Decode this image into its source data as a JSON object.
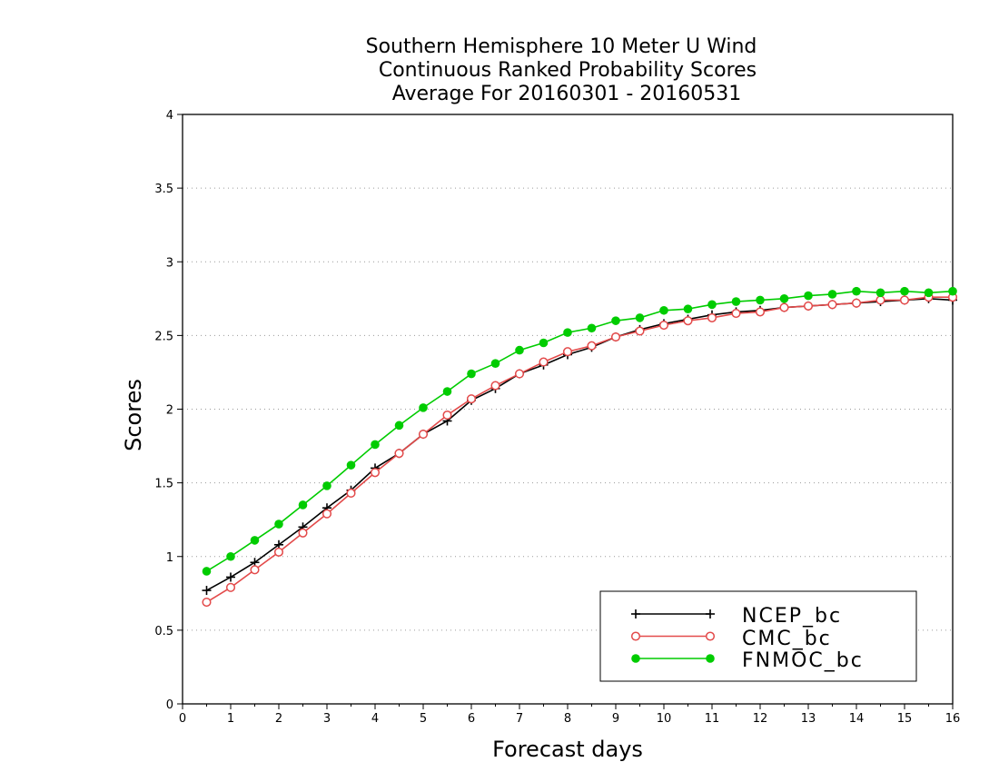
{
  "chart_data": {
    "type": "line",
    "title": [
      "Southern Hemisphere 10 Meter U Wind",
      "Continuous Ranked Probability Scores",
      "Average For 20160301 - 20160531"
    ],
    "xlabel": "Forecast days",
    "ylabel": "Scores",
    "xlim": [
      0,
      16
    ],
    "ylim": [
      0,
      4
    ],
    "xticks": [
      0,
      1,
      2,
      3,
      4,
      5,
      6,
      7,
      8,
      9,
      10,
      11,
      12,
      13,
      14,
      15,
      16
    ],
    "yticks": [
      0,
      0.5,
      1,
      1.5,
      2,
      2.5,
      3,
      3.5,
      4
    ],
    "ytick_labels": [
      "0",
      "0.5",
      "1",
      "1.5",
      "2",
      "2.5",
      "3",
      "3.5",
      "4"
    ],
    "grid": "horizontal dotted",
    "legend_position": "bottom-right",
    "x": [
      0.5,
      1,
      1.5,
      2,
      2.5,
      3,
      3.5,
      4,
      4.5,
      5,
      5.5,
      6,
      6.5,
      7,
      7.5,
      8,
      8.5,
      9,
      9.5,
      10,
      10.5,
      11,
      11.5,
      12,
      12.5,
      13,
      13.5,
      14,
      14.5,
      15,
      15.5,
      16
    ],
    "series": [
      {
        "name": "NCEP_bc",
        "color": "#000000",
        "marker": "plus",
        "values": [
          0.77,
          0.86,
          0.96,
          1.08,
          1.2,
          1.33,
          1.45,
          1.6,
          1.7,
          1.83,
          1.92,
          2.06,
          2.14,
          2.24,
          2.3,
          2.37,
          2.42,
          2.49,
          2.54,
          2.58,
          2.61,
          2.64,
          2.66,
          2.67,
          2.69,
          2.7,
          2.71,
          2.72,
          2.73,
          2.74,
          2.75,
          2.74
        ]
      },
      {
        "name": "CMC_bc",
        "color": "#e34a4a",
        "marker": "open-circle",
        "values": [
          0.69,
          0.79,
          0.91,
          1.03,
          1.16,
          1.29,
          1.43,
          1.57,
          1.7,
          1.83,
          1.96,
          2.07,
          2.16,
          2.24,
          2.32,
          2.39,
          2.43,
          2.49,
          2.53,
          2.57,
          2.6,
          2.62,
          2.65,
          2.66,
          2.69,
          2.7,
          2.71,
          2.72,
          2.74,
          2.74,
          2.76,
          2.76
        ]
      },
      {
        "name": "FNMOC_bc",
        "color": "#00cc00",
        "marker": "filled-circle",
        "values": [
          0.9,
          1.0,
          1.11,
          1.22,
          1.35,
          1.48,
          1.62,
          1.76,
          1.89,
          2.01,
          2.12,
          2.24,
          2.31,
          2.4,
          2.45,
          2.52,
          2.55,
          2.6,
          2.62,
          2.67,
          2.68,
          2.71,
          2.73,
          2.74,
          2.75,
          2.77,
          2.78,
          2.8,
          2.79,
          2.8,
          2.79,
          2.8
        ]
      }
    ]
  }
}
